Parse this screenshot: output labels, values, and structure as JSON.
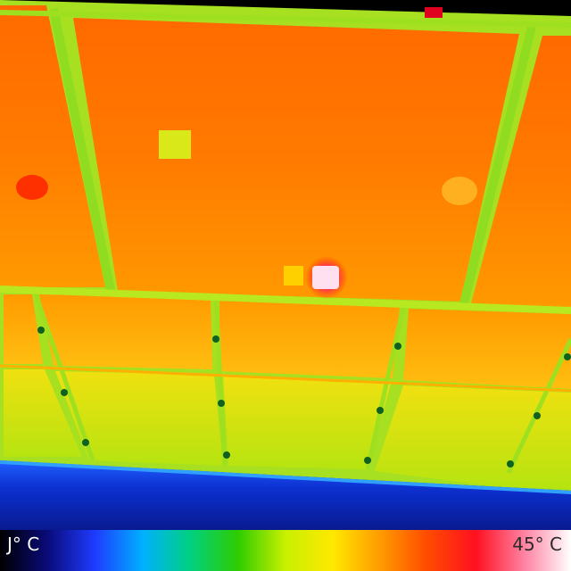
{
  "scale": {
    "min_label": "J° C",
    "max_label": "45° C",
    "gradient_colors": [
      "#000000",
      "#0a0a7a",
      "#1e3cff",
      "#00b0ff",
      "#00d080",
      "#2ecc00",
      "#c8f000",
      "#ffe800",
      "#ff9a00",
      "#ff4a00",
      "#ff1020",
      "#ff80a0",
      "#ffffff"
    ]
  },
  "palette": {
    "panel_hot": "#ff5a00",
    "panel_warm": "#ff8a00",
    "panel_mid": "#ffb400",
    "panel_cool": "#d6ea10",
    "frame_green": "#a6e020",
    "water_blue": "#1040e0",
    "hotspot": "#ff60a0"
  }
}
